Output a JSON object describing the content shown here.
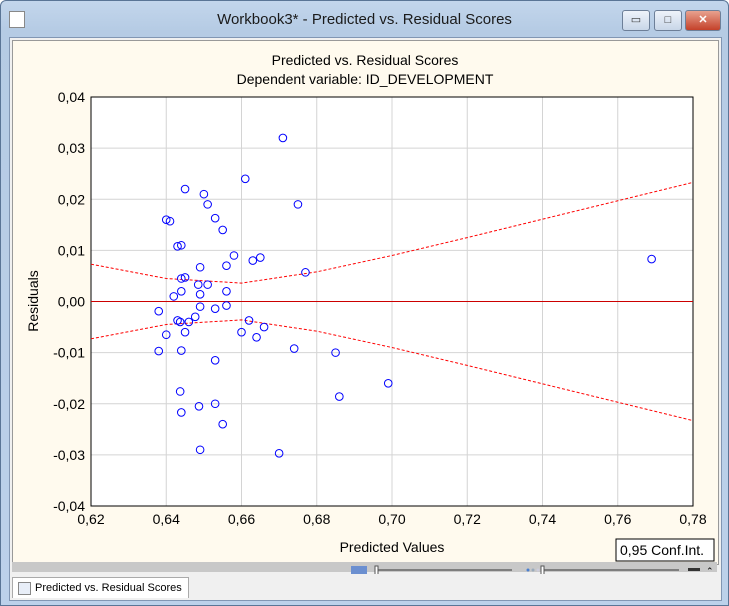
{
  "window": {
    "title": "Workbook3* - Predicted vs. Residual Scores",
    "minimize": "▭",
    "maximize": "□",
    "close": "✕"
  },
  "tab": {
    "label": "Predicted vs. Residual Scores"
  },
  "legend": {
    "label": "0,95 Conf.Int."
  },
  "colors": {
    "points": "#0000ff",
    "band": "#ff0000",
    "zero_line": "#cc0000",
    "plot_bg": "#ffffff",
    "chart_bg": "#fffaee"
  },
  "chart_data": {
    "type": "scatter",
    "title": "Predicted vs. Residual Scores",
    "subtitle": "Dependent variable: ID_DEVELOPMENT",
    "xlabel": "Predicted Values",
    "ylabel": "Residuals",
    "xlim": [
      0.62,
      0.78
    ],
    "ylim": [
      -0.04,
      0.04
    ],
    "grid": true,
    "x_ticks": [
      "0,62",
      "0,64",
      "0,66",
      "0,68",
      "0,70",
      "0,72",
      "0,74",
      "0,76",
      "0,78"
    ],
    "y_ticks": [
      "0,04",
      "0,03",
      "0,02",
      "0,01",
      "0,00",
      "-0,01",
      "-0,02",
      "-0,03",
      "-0,04"
    ],
    "x_tick_values": [
      0.62,
      0.64,
      0.66,
      0.68,
      0.7,
      0.72,
      0.74,
      0.76,
      0.78
    ],
    "y_tick_values": [
      0.04,
      0.03,
      0.02,
      0.01,
      0,
      -0.01,
      -0.02,
      -0.03,
      -0.04
    ],
    "points": [
      [
        0.671,
        0.032
      ],
      [
        0.661,
        0.024
      ],
      [
        0.645,
        0.022
      ],
      [
        0.65,
        0.021
      ],
      [
        0.675,
        0.019
      ],
      [
        0.651,
        0.019
      ],
      [
        0.64,
        0.016
      ],
      [
        0.641,
        0.0157
      ],
      [
        0.653,
        0.0163
      ],
      [
        0.655,
        0.014
      ],
      [
        0.643,
        0.0108
      ],
      [
        0.644,
        0.011
      ],
      [
        0.658,
        0.009
      ],
      [
        0.656,
        0.007
      ],
      [
        0.663,
        0.008
      ],
      [
        0.665,
        0.0086
      ],
      [
        0.649,
        0.0067
      ],
      [
        0.677,
        0.0057
      ],
      [
        0.644,
        0.0045
      ],
      [
        0.645,
        0.0047
      ],
      [
        0.6485,
        0.0033
      ],
      [
        0.651,
        0.0033
      ],
      [
        0.644,
        0.002
      ],
      [
        0.656,
        0.002
      ],
      [
        0.642,
        0.001
      ],
      [
        0.649,
        0.0014
      ],
      [
        0.638,
        -0.0019
      ],
      [
        0.649,
        -0.001
      ],
      [
        0.656,
        -0.0008
      ],
      [
        0.653,
        -0.0014
      ],
      [
        0.643,
        -0.0037
      ],
      [
        0.6437,
        -0.004
      ],
      [
        0.646,
        -0.004
      ],
      [
        0.6477,
        -0.003
      ],
      [
        0.662,
        -0.0037
      ],
      [
        0.64,
        -0.0065
      ],
      [
        0.645,
        -0.006
      ],
      [
        0.66,
        -0.006
      ],
      [
        0.666,
        -0.005
      ],
      [
        0.664,
        -0.007
      ],
      [
        0.638,
        -0.0097
      ],
      [
        0.644,
        -0.0096
      ],
      [
        0.674,
        -0.0092
      ],
      [
        0.653,
        -0.0115
      ],
      [
        0.685,
        -0.01
      ],
      [
        0.699,
        -0.016
      ],
      [
        0.6437,
        -0.0176
      ],
      [
        0.686,
        -0.0186
      ],
      [
        0.6487,
        -0.0205
      ],
      [
        0.653,
        -0.02
      ],
      [
        0.644,
        -0.0217
      ],
      [
        0.655,
        -0.024
      ],
      [
        0.649,
        -0.029
      ],
      [
        0.67,
        -0.0297
      ],
      [
        0.769,
        0.0083
      ]
    ],
    "conf_band": {
      "x": [
        0.62,
        0.64,
        0.66,
        0.68,
        0.7,
        0.72,
        0.74,
        0.76,
        0.78
      ],
      "upper": [
        0.0073,
        0.0045,
        0.0036,
        0.0058,
        0.009,
        0.0125,
        0.0161,
        0.0197,
        0.0233
      ]
    }
  }
}
